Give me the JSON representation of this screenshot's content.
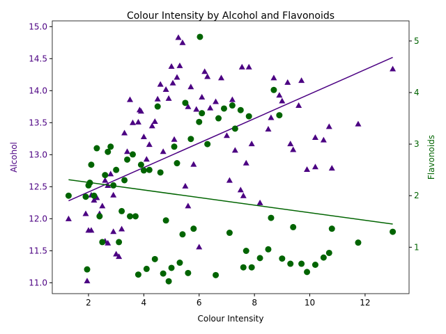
{
  "chart_data": {
    "type": "scatter",
    "title": "Colour Intensity by Alcohol and Flavonoids",
    "xlabel": "Colour Intensity",
    "ylabel": "Alcohol",
    "y2label": "Flavonoids",
    "xlim": [
      0.69,
      13.59
    ],
    "xticks": [
      2,
      4,
      6,
      8,
      10,
      12
    ],
    "ylim": [
      10.83,
      15.09
    ],
    "yticks": [
      {
        "value": 11,
        "label": "11.0"
      },
      11.5,
      {
        "value": 12,
        "label": "12.0"
      },
      12.5,
      {
        "value": 13,
        "label": "13.0"
      },
      13.5,
      {
        "value": 14,
        "label": "14.0"
      },
      14.5,
      {
        "value": 15,
        "label": "15.0"
      }
    ],
    "y2lim": [
      0.1,
      5.39
    ],
    "y2ticks": [
      1,
      2,
      3,
      4,
      5
    ],
    "series": [
      {
        "name": "Alcohol",
        "color": "#4b0082",
        "marker": "triangle",
        "x": [
          1.28,
          1.9,
          1.95,
          2.0,
          2.1,
          2.1,
          2.2,
          2.3,
          2.4,
          2.5,
          2.6,
          2.7,
          2.8,
          2.9,
          2.6,
          2.7,
          2.9,
          3.0,
          3.1,
          3.2,
          3.3,
          3.4,
          3.5,
          3.6,
          3.8,
          3.85,
          3.9,
          4.0,
          4.1,
          4.2,
          4.3,
          4.4,
          4.5,
          4.6,
          4.7,
          4.8,
          4.9,
          5.0,
          5.05,
          5.1,
          5.2,
          5.25,
          5.4,
          5.3,
          5.5,
          5.6,
          5.6,
          5.7,
          5.8,
          5.9,
          6.0,
          6.1,
          6.2,
          6.3,
          6.4,
          6.6,
          6.8,
          7.0,
          7.1,
          7.2,
          7.3,
          7.5,
          7.55,
          7.6,
          7.7,
          7.8,
          7.9,
          8.2,
          8.5,
          8.6,
          8.7,
          8.9,
          9.0,
          9.2,
          9.3,
          9.4,
          9.6,
          9.7,
          9.9,
          10.2,
          10.2,
          10.5,
          10.7,
          10.8,
          11.75,
          13.0
        ],
        "values": [
          12.0,
          12.08,
          11.03,
          11.82,
          11.82,
          12.37,
          12.29,
          12.33,
          12.08,
          12.2,
          12.6,
          12.52,
          12.7,
          12.37,
          11.65,
          11.62,
          11.8,
          11.45,
          11.41,
          11.84,
          13.34,
          13.05,
          13.86,
          13.5,
          13.51,
          13.7,
          13.68,
          13.28,
          12.93,
          13.16,
          13.45,
          13.52,
          13.87,
          14.1,
          13.05,
          14.02,
          13.88,
          14.38,
          14.12,
          13.24,
          14.21,
          14.83,
          14.75,
          14.39,
          12.51,
          12.2,
          13.75,
          14.06,
          12.85,
          13.71,
          11.56,
          13.9,
          14.3,
          14.22,
          13.73,
          13.83,
          14.2,
          13.3,
          12.6,
          13.86,
          13.07,
          12.45,
          14.37,
          12.36,
          12.87,
          14.37,
          13.17,
          12.25,
          13.4,
          13.58,
          14.2,
          13.93,
          13.84,
          14.13,
          13.17,
          13.08,
          13.77,
          14.16,
          12.77,
          12.81,
          13.27,
          13.23,
          13.44,
          12.79,
          13.48,
          14.34
        ],
        "fit": {
          "x": [
            1.28,
            13.0
          ],
          "values": [
            12.28,
            14.52
          ]
        }
      },
      {
        "name": "Flavonoids",
        "color": "#006400",
        "marker": "circle",
        "axis": "y2",
        "x": [
          1.28,
          1.9,
          1.95,
          2.0,
          2.05,
          2.1,
          2.2,
          2.3,
          2.4,
          2.5,
          2.6,
          2.7,
          2.8,
          2.9,
          3.0,
          3.1,
          3.2,
          3.3,
          3.4,
          3.5,
          3.6,
          3.7,
          3.8,
          3.9,
          4.0,
          4.1,
          4.2,
          4.4,
          4.5,
          4.6,
          4.7,
          4.8,
          4.9,
          5.0,
          5.1,
          5.2,
          5.3,
          5.4,
          5.5,
          5.6,
          5.7,
          5.8,
          6.0,
          6.03,
          6.1,
          6.3,
          6.6,
          6.7,
          6.9,
          7.1,
          7.2,
          7.3,
          7.5,
          7.6,
          7.7,
          7.8,
          7.9,
          8.2,
          8.5,
          8.6,
          8.7,
          8.9,
          9.0,
          9.3,
          9.4,
          9.7,
          9.9,
          10.2,
          10.5,
          10.7,
          10.8,
          11.75,
          13.0
        ],
        "values": [
          2.0,
          1.98,
          0.57,
          2.2,
          2.25,
          2.6,
          2.0,
          2.92,
          1.6,
          1.1,
          2.4,
          2.85,
          2.95,
          2.2,
          2.5,
          1.1,
          1.7,
          2.3,
          2.7,
          1.6,
          2.8,
          1.6,
          0.47,
          2.6,
          2.49,
          0.58,
          2.5,
          0.77,
          3.73,
          2.45,
          0.49,
          1.52,
          0.34,
          0.6,
          2.95,
          2.63,
          0.7,
          1.25,
          3.8,
          0.5,
          3.1,
          1.36,
          3.43,
          5.08,
          3.6,
          3.0,
          0.46,
          3.5,
          3.69,
          1.28,
          3.75,
          3.3,
          3.66,
          0.61,
          0.93,
          3.54,
          0.61,
          0.79,
          0.96,
          1.57,
          4.05,
          3.56,
          0.78,
          0.68,
          1.39,
          0.68,
          0.52,
          0.66,
          0.8,
          0.89,
          1.36,
          1.09,
          1.3
        ],
        "fit": {
          "x": [
            1.28,
            13.0
          ],
          "values": [
            2.31,
            1.45
          ]
        }
      }
    ]
  }
}
